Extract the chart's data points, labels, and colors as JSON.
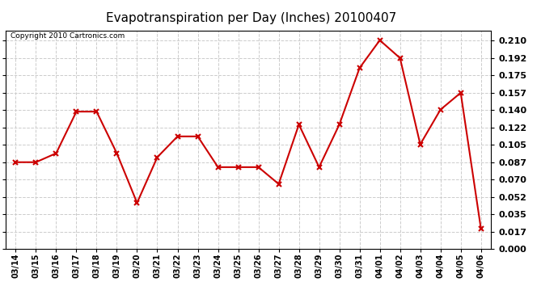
{
  "title": "Evapotranspiration per Day (Inches) 20100407",
  "copyright_text": "Copyright 2010 Cartronics.com",
  "dates": [
    "03/14",
    "03/15",
    "03/16",
    "03/17",
    "03/18",
    "03/19",
    "03/20",
    "03/21",
    "03/22",
    "03/23",
    "03/24",
    "03/25",
    "03/26",
    "03/27",
    "03/28",
    "03/29",
    "03/30",
    "03/31",
    "04/01",
    "04/02",
    "04/03",
    "04/04",
    "04/05",
    "04/06"
  ],
  "values": [
    0.087,
    0.087,
    0.096,
    0.138,
    0.138,
    0.096,
    0.046,
    0.092,
    0.113,
    0.113,
    0.082,
    0.082,
    0.082,
    0.065,
    0.125,
    0.082,
    0.125,
    0.182,
    0.21,
    0.192,
    0.105,
    0.14,
    0.157,
    0.02
  ],
  "line_color": "#cc0000",
  "marker": "x",
  "marker_color": "#cc0000",
  "marker_size": 4,
  "line_width": 1.5,
  "yticks": [
    0.0,
    0.017,
    0.035,
    0.052,
    0.07,
    0.087,
    0.105,
    0.122,
    0.14,
    0.157,
    0.175,
    0.192,
    0.21
  ],
  "ylim": [
    0.0,
    0.22
  ],
  "bg_color": "#ffffff",
  "grid_color": "#cccccc",
  "title_fontsize": 11,
  "copyright_fontsize": 6.5,
  "tick_fontsize": 7,
  "ytick_fontsize": 8
}
